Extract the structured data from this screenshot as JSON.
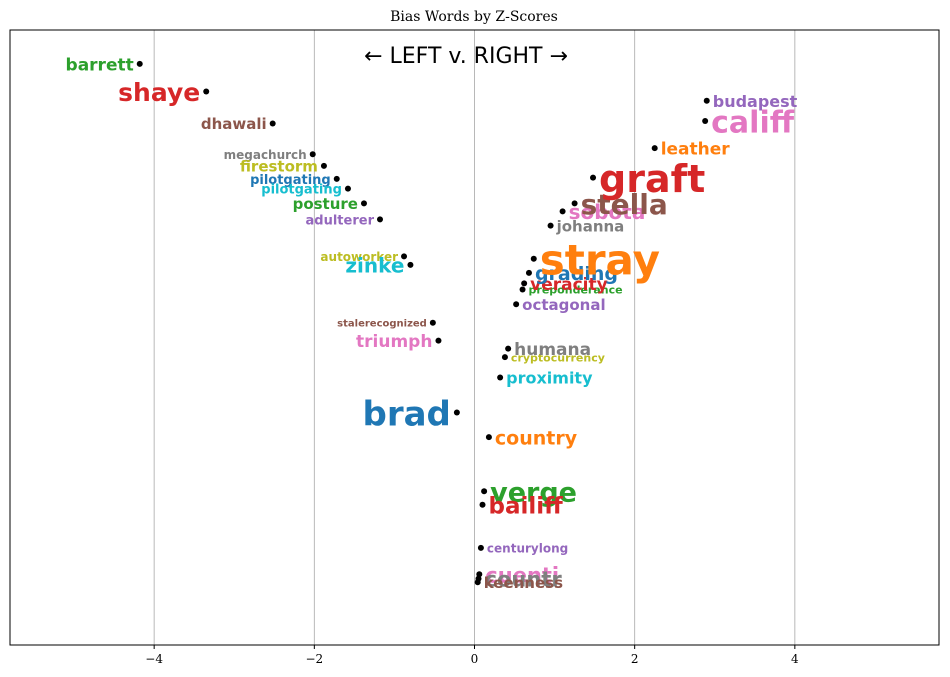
{
  "chart_data": {
    "type": "scatter",
    "title": "Bias Words by Z-Scores",
    "annotation": "← LEFT v. RIGHT →",
    "xlim": [
      -5.8,
      5.8
    ],
    "ylim": [
      0,
      1
    ],
    "grid": "vertical",
    "x_ticks": [
      -4,
      -2,
      0,
      2,
      4
    ],
    "x_tick_labels": [
      "−4",
      "−2",
      "0",
      "2",
      "4"
    ],
    "points": [
      {
        "word": "barrett",
        "x": -4.18,
        "y": 0.945,
        "color": "#2ca02c",
        "size": 17
      },
      {
        "word": "shaye",
        "x": -3.35,
        "y": 0.9,
        "color": "#d62728",
        "size": 25
      },
      {
        "word": "dhawali",
        "x": -2.52,
        "y": 0.848,
        "color": "#8c564b",
        "size": 15
      },
      {
        "word": "megachurch",
        "x": -2.02,
        "y": 0.798,
        "color": "#7f7f7f",
        "size": 12
      },
      {
        "word": "firestorm",
        "x": -1.88,
        "y": 0.779,
        "color": "#bcbd22",
        "size": 15
      },
      {
        "word": "pilotgating",
        "x": -1.72,
        "y": 0.758,
        "color": "#1f77b4",
        "size": 13
      },
      {
        "word": "pilotgating",
        "x": -1.58,
        "y": 0.742,
        "color": "#17becf",
        "size": 13
      },
      {
        "word": "posture",
        "x": -1.38,
        "y": 0.718,
        "color": "#2ca02c",
        "size": 15
      },
      {
        "word": "adulterer",
        "x": -1.18,
        "y": 0.692,
        "color": "#9467bd",
        "size": 13
      },
      {
        "word": "autoworker",
        "x": -0.88,
        "y": 0.632,
        "color": "#bcbd22",
        "size": 12
      },
      {
        "word": "zinke",
        "x": -0.8,
        "y": 0.618,
        "color": "#17becf",
        "size": 20
      },
      {
        "word": "stalerecognized",
        "x": -0.52,
        "y": 0.524,
        "color": "#8c564b",
        "size": 10
      },
      {
        "word": "triumph",
        "x": -0.45,
        "y": 0.495,
        "color": "#e377c2",
        "size": 17
      },
      {
        "word": "brad",
        "x": -0.22,
        "y": 0.378,
        "color": "#1f77b4",
        "size": 34
      },
      {
        "word": "country",
        "x": 0.18,
        "y": 0.338,
        "color": "#ff7f0e",
        "size": 19
      },
      {
        "word": "verge",
        "x": 0.12,
        "y": 0.25,
        "color": "#2ca02c",
        "size": 27
      },
      {
        "word": "bailiff",
        "x": 0.1,
        "y": 0.228,
        "color": "#d62728",
        "size": 23
      },
      {
        "word": "centurylong",
        "x": 0.08,
        "y": 0.158,
        "color": "#9467bd",
        "size": 12
      },
      {
        "word": "cuenti",
        "x": 0.06,
        "y": 0.115,
        "color": "#e377c2",
        "size": 21
      },
      {
        "word": "countr",
        "x": 0.05,
        "y": 0.108,
        "color": "#7f7f7f",
        "size": 21
      },
      {
        "word": "keenness",
        "x": 0.04,
        "y": 0.102,
        "color": "#8c564b",
        "size": 15
      },
      {
        "word": "proximity",
        "x": 0.32,
        "y": 0.435,
        "color": "#17becf",
        "size": 16
      },
      {
        "word": "cryptocurrency",
        "x": 0.38,
        "y": 0.468,
        "color": "#bcbd22",
        "size": 11
      },
      {
        "word": "humana",
        "x": 0.42,
        "y": 0.482,
        "color": "#7f7f7f",
        "size": 17
      },
      {
        "word": "octagonal",
        "x": 0.52,
        "y": 0.554,
        "color": "#9467bd",
        "size": 15
      },
      {
        "word": "preponderance",
        "x": 0.6,
        "y": 0.578,
        "color": "#2ca02c",
        "size": 11
      },
      {
        "word": "veracity",
        "x": 0.62,
        "y": 0.588,
        "color": "#d62728",
        "size": 17
      },
      {
        "word": "grading",
        "x": 0.68,
        "y": 0.605,
        "color": "#1f77b4",
        "size": 19
      },
      {
        "word": "stray",
        "x": 0.74,
        "y": 0.628,
        "color": "#ff7f0e",
        "size": 42
      },
      {
        "word": "johanna",
        "x": 0.95,
        "y": 0.682,
        "color": "#7f7f7f",
        "size": 15
      },
      {
        "word": "sobota",
        "x": 1.1,
        "y": 0.705,
        "color": "#e377c2",
        "size": 20
      },
      {
        "word": "stella",
        "x": 1.25,
        "y": 0.718,
        "color": "#8c564b",
        "size": 28
      },
      {
        "word": "graft",
        "x": 1.48,
        "y": 0.76,
        "color": "#d62728",
        "size": 38
      },
      {
        "word": "leather",
        "x": 2.25,
        "y": 0.808,
        "color": "#ff7f0e",
        "size": 17
      },
      {
        "word": "califf",
        "x": 2.88,
        "y": 0.852,
        "color": "#e377c2",
        "size": 30
      },
      {
        "word": "budapest",
        "x": 2.9,
        "y": 0.885,
        "color": "#9467bd",
        "size": 16
      }
    ]
  }
}
